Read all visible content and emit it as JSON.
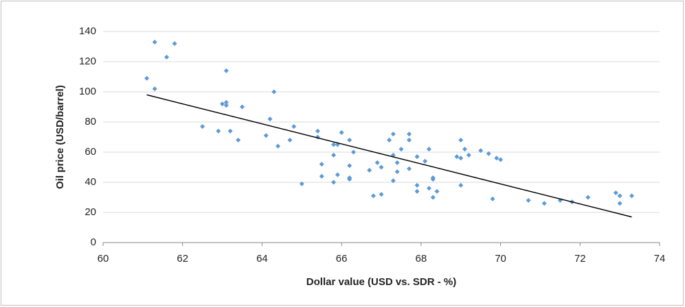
{
  "chart_data": {
    "type": "scatter",
    "xlabel": "Dollar value (USD vs. SDR - %)",
    "ylabel": "Oil price (USD/barrel)",
    "color": "#5b9bd5",
    "grid": true,
    "xlim": [
      60,
      74
    ],
    "xticks": [
      60,
      62,
      64,
      66,
      68,
      70,
      72,
      74
    ],
    "ylim": [
      0,
      140
    ],
    "yticks": [
      0,
      20,
      40,
      60,
      80,
      100,
      120,
      140
    ],
    "x": [
      61.1,
      61.3,
      61.3,
      61.6,
      61.8,
      62.5,
      62.9,
      63.0,
      63.1,
      63.1,
      63.1,
      63.2,
      63.4,
      63.5,
      64.1,
      64.2,
      64.3,
      64.4,
      64.7,
      64.8,
      65.0,
      65.4,
      65.4,
      65.5,
      65.5,
      65.8,
      65.8,
      65.8,
      65.9,
      65.9,
      66.0,
      66.2,
      66.2,
      66.2,
      66.2,
      66.3,
      66.7,
      66.8,
      66.9,
      67.0,
      67.0,
      67.2,
      67.3,
      67.3,
      67.3,
      67.4,
      67.4,
      67.5,
      67.7,
      67.7,
      67.7,
      67.9,
      67.9,
      67.9,
      68.1,
      68.2,
      68.2,
      68.3,
      68.3,
      68.3,
      68.4,
      68.9,
      69.0,
      69.0,
      69.0,
      69.1,
      69.2,
      69.5,
      69.7,
      69.8,
      69.9,
      70.0,
      70.7,
      71.1,
      71.5,
      71.8,
      72.2,
      72.9,
      73.0,
      73.0,
      73.3
    ],
    "values": [
      109,
      133,
      102,
      123,
      132,
      77,
      74,
      92,
      114,
      93,
      91,
      74,
      68,
      90,
      71,
      82,
      100,
      64,
      68,
      77,
      39,
      74,
      70,
      52,
      44,
      65,
      58,
      40,
      65,
      45,
      73,
      68,
      51,
      43,
      42,
      60,
      48,
      31,
      53,
      50,
      32,
      68,
      72,
      58,
      41,
      53,
      47,
      62,
      72,
      68,
      49,
      57,
      38,
      34,
      54,
      62,
      36,
      43,
      42,
      30,
      34,
      57,
      68,
      56,
      38,
      62,
      58,
      61,
      59,
      29,
      56,
      55,
      28,
      26,
      28,
      27,
      30,
      33,
      31,
      26,
      31
    ],
    "trendline": {
      "x": [
        61.1,
        73.3
      ],
      "y": [
        98,
        17
      ],
      "color": "#000000"
    }
  }
}
